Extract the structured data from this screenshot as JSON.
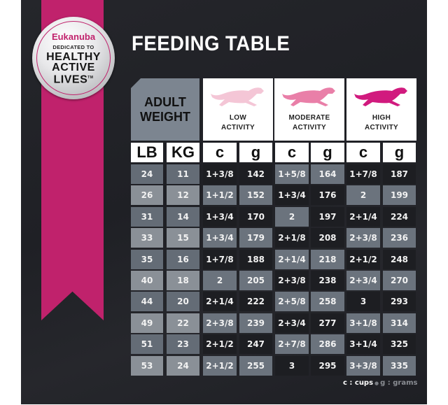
{
  "brand": {
    "name": "Eukanuba",
    "tagline_small": "DEDICATED TO",
    "tagline_big": [
      "HEALTHY",
      "ACTIVE",
      "LIVES"
    ],
    "trademark": "TM",
    "accent_color": "#c0226c"
  },
  "title": "FEEDING TABLE",
  "header": {
    "adult_weight": [
      "ADULT",
      "WEIGHT"
    ],
    "activities": [
      {
        "label": [
          "LOW",
          "ACTIVITY"
        ],
        "icon": "running-dog-icon",
        "color": "#f4c6d6"
      },
      {
        "label": [
          "MODERATE",
          "ACTIVITY"
        ],
        "icon": "running-dog-icon",
        "color": "#e97fa8"
      },
      {
        "label": [
          "HIGH",
          "ACTIVITY"
        ],
        "icon": "running-dog-icon",
        "color": "#d11a7e"
      }
    ],
    "units": [
      "LB",
      "KG",
      "c",
      "g",
      "c",
      "g",
      "c",
      "g"
    ]
  },
  "rows": [
    [
      "24",
      "11",
      "1+3/8",
      "142",
      "1+5/8",
      "164",
      "1+7/8",
      "187"
    ],
    [
      "26",
      "12",
      "1+1/2",
      "152",
      "1+3/4",
      "176",
      "2",
      "199"
    ],
    [
      "31",
      "14",
      "1+3/4",
      "170",
      "2",
      "197",
      "2+1/4",
      "224"
    ],
    [
      "33",
      "15",
      "1+3/4",
      "179",
      "2+1/8",
      "208",
      "2+3/8",
      "236"
    ],
    [
      "35",
      "16",
      "1+7/8",
      "188",
      "2+1/4",
      "218",
      "2+1/2",
      "248"
    ],
    [
      "40",
      "18",
      "2",
      "205",
      "2+3/8",
      "238",
      "2+3/4",
      "270"
    ],
    [
      "44",
      "20",
      "2+1/4",
      "222",
      "2+5/8",
      "258",
      "3",
      "293"
    ],
    [
      "49",
      "22",
      "2+3/8",
      "239",
      "2+3/4",
      "277",
      "3+1/8",
      "314"
    ],
    [
      "51",
      "23",
      "2+1/2",
      "247",
      "2+7/8",
      "286",
      "3+1/4",
      "325"
    ],
    [
      "53",
      "24",
      "2+1/2",
      "255",
      "3",
      "295",
      "3+3/8",
      "335"
    ]
  ],
  "legend": {
    "cups": "c : cups",
    "separator": "●",
    "grams": "g : grams"
  },
  "colors": {
    "cell_dark": "#1d1e22",
    "cell_mid": "#6b737d",
    "cell_light": "#8c9399",
    "weight_mid": "#646c76",
    "weight_light": "#8a9097"
  }
}
